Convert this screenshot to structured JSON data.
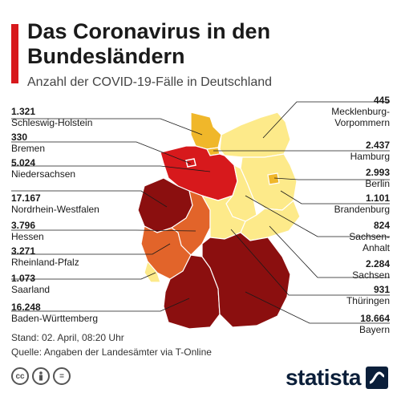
{
  "title": "Das Coronavirus in den Bundesländern",
  "subtitle": "Anzahl der COVID-19-Fälle in Deutschland",
  "states": [
    {
      "id": "sh",
      "name": "Schleswig-Holstein",
      "value": "1.321"
    },
    {
      "id": "hb",
      "name": "Bremen",
      "value": "330"
    },
    {
      "id": "ni",
      "name": "Niedersachsen",
      "value": "5.024"
    },
    {
      "id": "nw",
      "name": "Nordrhein-Westfalen",
      "value": "17.167"
    },
    {
      "id": "he",
      "name": "Hessen",
      "value": "3.796"
    },
    {
      "id": "rp",
      "name": "Rheinland-Pfalz",
      "value": "3.271"
    },
    {
      "id": "sl",
      "name": "Saarland",
      "value": "1.073"
    },
    {
      "id": "bw",
      "name": "Baden-Württemberg",
      "value": "16.248"
    },
    {
      "id": "mv",
      "name": "Mecklenburg-\nVorpommern",
      "value": "445"
    },
    {
      "id": "hh",
      "name": "Hamburg",
      "value": "2.437"
    },
    {
      "id": "be",
      "name": "Berlin",
      "value": "2.993"
    },
    {
      "id": "bb",
      "name": "Brandenburg",
      "value": "1.101"
    },
    {
      "id": "st",
      "name": "Sachsen-\nAnhalt",
      "value": "824"
    },
    {
      "id": "sn",
      "name": "Sachsen",
      "value": "2.284"
    },
    {
      "id": "th",
      "name": "Thüringen",
      "value": "931"
    },
    {
      "id": "by",
      "name": "Bayern",
      "value": "18.664"
    }
  ],
  "colors": {
    "level1": "#fdea8a",
    "level2": "#f0b72a",
    "level3": "#e2642a",
    "level4": "#d7191c",
    "level5": "#8b0f0f",
    "accent": "#d7191c"
  },
  "footer": {
    "stand": "Stand: 02. April, 08:20 Uhr",
    "quelle": "Quelle: Angaben der Landesämter via T-Online"
  },
  "icons": [
    "cc-icon",
    "person-icon",
    "equals-icon"
  ],
  "brand": "statista"
}
